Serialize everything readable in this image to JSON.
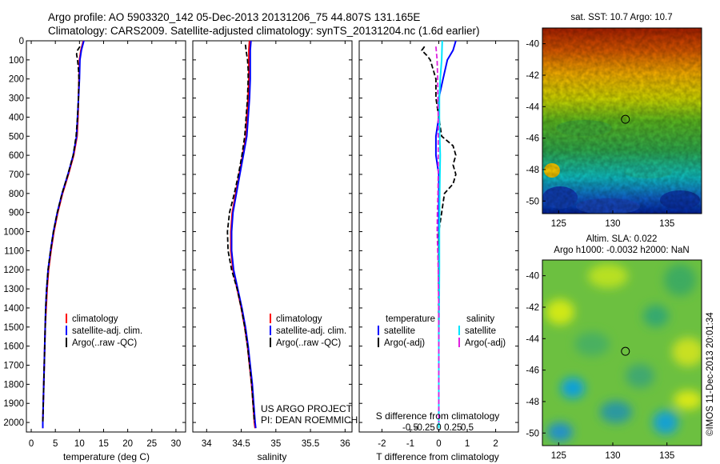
{
  "header": {
    "title_line1": "Argo profile: AO 5903320_142 05-Dec-2013 20131206_75 44.807S 131.165E",
    "title_line2": "Climatology: CARS2009. Satellite-adjusted climatology: synTS_20131204.nc (1.6d earlier)"
  },
  "colors": {
    "climatology": "#ff0000",
    "satellite": "#0000ff",
    "argo": "#000000",
    "sat_salinity": "#00e5ff",
    "argo_salinity": "#e020e0"
  },
  "chart_data": [
    {
      "type": "line",
      "name": "temperature-profile",
      "xlabel": "temperature (deg C)",
      "xlim": [
        -1,
        32
      ],
      "ylim": [
        2050,
        0
      ],
      "xticks": [
        0,
        5,
        10,
        15,
        20,
        25,
        30
      ],
      "yticks": [
        0,
        100,
        200,
        300,
        400,
        500,
        600,
        700,
        800,
        900,
        1000,
        1100,
        1200,
        1300,
        1400,
        1500,
        1600,
        1700,
        1800,
        1900,
        2000
      ],
      "legend": [
        "climatology",
        "satellite-adj. clim.",
        "Argo(..raw -QC)"
      ],
      "series": [
        {
          "name": "climatology",
          "color": "#ff0000",
          "depth": [
            0,
            50,
            100,
            200,
            300,
            400,
            500,
            600,
            700,
            800,
            900,
            1000,
            1100,
            1200,
            1300,
            1400,
            1500,
            1600,
            1700,
            1800,
            1900,
            2000,
            2030
          ],
          "values": [
            10.8,
            10.3,
            10.0,
            9.9,
            9.8,
            9.7,
            9.5,
            8.8,
            7.7,
            6.5,
            5.5,
            4.7,
            4.1,
            3.6,
            3.3,
            3.1,
            2.9,
            2.8,
            2.7,
            2.6,
            2.5,
            2.4,
            2.4
          ]
        },
        {
          "name": "satellite-adj. clim.",
          "color": "#0000ff",
          "depth": [
            0,
            50,
            100,
            200,
            300,
            400,
            500,
            600,
            700,
            800,
            900,
            1000,
            1100,
            1200,
            1300,
            1400,
            1500,
            1600,
            1700,
            1800,
            1900,
            2000,
            2030
          ],
          "values": [
            10.9,
            10.4,
            10.1,
            10.0,
            9.8,
            9.6,
            9.4,
            8.7,
            7.6,
            6.4,
            5.4,
            4.6,
            4.0,
            3.5,
            3.2,
            3.0,
            2.9,
            2.8,
            2.7,
            2.6,
            2.5,
            2.4,
            2.4
          ]
        },
        {
          "name": "Argo(..raw -QC)",
          "color": "#000000",
          "dashed": true,
          "depth": [
            30,
            50,
            70,
            100,
            150,
            200,
            300,
            400,
            500,
            600,
            700,
            800,
            900,
            1000,
            1100,
            1200,
            1300,
            1400,
            1500,
            1600,
            1700,
            1800,
            1900,
            2000
          ],
          "values": [
            10.1,
            9.6,
            9.4,
            9.6,
            9.8,
            9.9,
            9.8,
            9.6,
            9.3,
            8.7,
            7.6,
            6.4,
            5.4,
            4.6,
            4.0,
            3.5,
            3.2,
            3.0,
            2.9,
            2.8,
            2.7,
            2.6,
            2.5,
            2.4
          ]
        }
      ]
    },
    {
      "type": "line",
      "name": "salinity-profile",
      "xlabel": "salinity",
      "xlim": [
        33.8,
        36.1
      ],
      "ylim": [
        2050,
        0
      ],
      "xticks": [
        34,
        34.5,
        35,
        35.5,
        36
      ],
      "legend": [
        "climatology",
        "satellite-adj. clim.",
        "Argo(..raw -QC)"
      ],
      "series": [
        {
          "name": "climatology",
          "color": "#ff0000",
          "depth": [
            0,
            50,
            100,
            200,
            300,
            400,
            500,
            600,
            700,
            800,
            900,
            1000,
            1100,
            1200,
            1300,
            1400,
            1500,
            1600,
            1700,
            1800,
            1900,
            2000,
            2030
          ],
          "values": [
            34.62,
            34.61,
            34.61,
            34.61,
            34.6,
            34.58,
            34.57,
            34.52,
            34.47,
            34.42,
            34.37,
            34.35,
            34.35,
            34.38,
            34.44,
            34.5,
            34.55,
            34.59,
            34.62,
            34.65,
            34.67,
            34.69,
            34.7
          ]
        },
        {
          "name": "satellite-adj. clim.",
          "color": "#0000ff",
          "depth": [
            0,
            50,
            100,
            200,
            300,
            400,
            500,
            600,
            700,
            800,
            900,
            1000,
            1100,
            1200,
            1300,
            1400,
            1500,
            1600,
            1700,
            1800,
            1900,
            2000,
            2030
          ],
          "values": [
            34.64,
            34.63,
            34.63,
            34.63,
            34.62,
            34.6,
            34.58,
            34.53,
            34.48,
            34.43,
            34.38,
            34.36,
            34.36,
            34.39,
            34.45,
            34.51,
            34.56,
            34.6,
            34.63,
            34.66,
            34.68,
            34.7,
            34.71
          ]
        },
        {
          "name": "Argo(..raw -QC)",
          "color": "#000000",
          "dashed": true,
          "depth": [
            20,
            50,
            100,
            150,
            200,
            300,
            400,
            500,
            600,
            700,
            800,
            900,
            1000,
            1100,
            1200,
            1300,
            1400,
            1500,
            1600,
            1700,
            1800,
            1900,
            2000
          ],
          "values": [
            34.56,
            34.57,
            34.59,
            34.6,
            34.6,
            34.59,
            34.57,
            34.55,
            34.51,
            34.46,
            34.4,
            34.33,
            34.3,
            34.31,
            34.36,
            34.44,
            34.5,
            34.55,
            34.59,
            34.62,
            34.65,
            34.67,
            34.69
          ]
        }
      ]
    },
    {
      "type": "line",
      "name": "difference-profile",
      "xlabel": "T difference from climatology",
      "xlabel_top": "S difference from climatology",
      "xlim": [
        -2.8,
        2.8
      ],
      "ylim": [
        2050,
        0
      ],
      "xticks": [
        -2,
        -1,
        0,
        1,
        2
      ],
      "xticks_top": [
        "-0.5",
        "-0.25",
        "0",
        "0.25",
        "0.5"
      ],
      "legend_temperature": [
        "temperature",
        "satellite",
        "Argo(-adj)"
      ],
      "legend_salinity": [
        "salinity",
        "satellite",
        "Argo(-adj)"
      ],
      "series": [
        {
          "name": "temperature satellite",
          "color": "#0000ff",
          "depth": [
            0,
            50,
            100,
            200,
            300,
            400,
            500,
            600,
            700,
            800,
            900,
            1000,
            1200,
            1400,
            1600,
            1800,
            2000,
            2030
          ],
          "values": [
            0.6,
            0.5,
            0.3,
            0.15,
            0.0,
            0.0,
            -0.1,
            -0.1,
            0.0,
            0.0,
            0.0,
            0.0,
            0.0,
            0.0,
            0.0,
            0.0,
            0.0,
            0.0
          ]
        },
        {
          "name": "temperature Argo(-adj)",
          "color": "#000000",
          "dashed": true,
          "depth": [
            30,
            50,
            80,
            100,
            150,
            200,
            300,
            400,
            500,
            550,
            600,
            650,
            700,
            750,
            800,
            900,
            1000,
            1200,
            1400,
            1600,
            1800,
            2000
          ],
          "values": [
            -0.5,
            -0.6,
            -0.4,
            -0.3,
            -0.2,
            -0.1,
            -0.1,
            0.0,
            0.1,
            0.5,
            0.6,
            0.5,
            0.6,
            0.5,
            0.2,
            0.1,
            0.0,
            0.0,
            0.0,
            0.0,
            0.0,
            0.0
          ]
        },
        {
          "name": "salinity satellite",
          "color": "#00e5ff",
          "depth": [
            0,
            100,
            200,
            300,
            400,
            500,
            600,
            700,
            800,
            1000,
            1200,
            1400,
            1600,
            1800,
            2000,
            2030
          ],
          "values": [
            0.12,
            0.1,
            0.05,
            0.02,
            0.02,
            0.03,
            0.05,
            0.04,
            0.03,
            0.02,
            0.02,
            0.01,
            0.0,
            0.0,
            0.0,
            0.0
          ]
        },
        {
          "name": "salinity Argo(-adj)",
          "color": "#e020e0",
          "dashed": true,
          "depth": [
            30,
            100,
            200,
            300,
            400,
            500,
            600,
            700,
            800,
            900,
            1000,
            1100,
            1200,
            1300,
            1400,
            1500,
            1600,
            1700,
            1800,
            1900,
            2000
          ],
          "values": [
            -0.1,
            -0.06,
            -0.04,
            -0.03,
            -0.02,
            -0.02,
            -0.02,
            -0.02,
            -0.03,
            -0.05,
            -0.06,
            -0.04,
            -0.02,
            -0.01,
            0.0,
            0.0,
            0.0,
            0.0,
            0.0,
            0.0,
            0.0
          ]
        }
      ]
    },
    {
      "type": "heatmap",
      "name": "sst-map",
      "title": "sat. SST: 10.7 Argo: 10.7",
      "xlim": [
        123.5,
        138.2
      ],
      "ylim": [
        -50.8,
        -39.0
      ],
      "xticks": [
        125,
        130,
        135
      ],
      "yticks": [
        -40,
        -42,
        -44,
        -46,
        -48,
        -50
      ],
      "marker": {
        "lon": 131.165,
        "lat": -44.807
      }
    },
    {
      "type": "heatmap",
      "name": "sla-map",
      "title_line1": "Altim. SLA: 0.022",
      "title_line2": "Argo h1000: -0.0032 h2000: NaN",
      "xlim": [
        123.5,
        138.2
      ],
      "ylim": [
        -50.8,
        -39.0
      ],
      "xticks": [
        125,
        130,
        135
      ],
      "yticks": [
        -40,
        -42,
        -44,
        -46,
        -48,
        -50
      ],
      "marker": {
        "lon": 131.165,
        "lat": -44.807
      }
    }
  ],
  "annotation": {
    "project_line1": "US ARGO PROJECT",
    "project_line2": "PI: DEAN ROEMMICH",
    "imos_stamp": "©IMOS 11-Dec-2013 20:01:34"
  }
}
